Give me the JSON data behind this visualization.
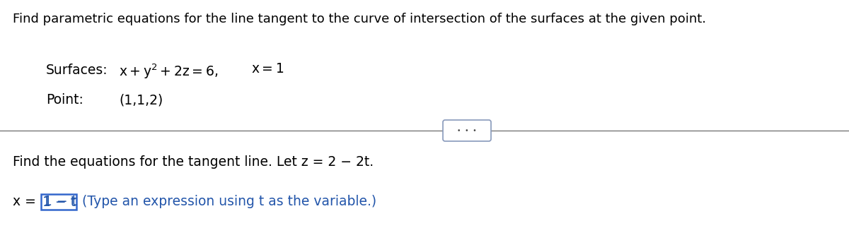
{
  "bg_color": "#ffffff",
  "title_text": "Find parametric equations for the line tangent to the curve of intersection of the surfaces at the given point.",
  "text_color": "#000000",
  "answer_color": "#2255aa",
  "box_edge_color": "#3366cc",
  "divider_color": "#777777",
  "font_family": "DejaVu Sans",
  "title_fontsize": 13.0,
  "body_fontsize": 13.5,
  "find_text": "Find the equations for the tangent line. Let z = 2 − 2t.",
  "x_eq_label": "x = ",
  "box_text": "1 − t",
  "type_text": "(Type an expression using t as the variable.)",
  "surfaces_label": "Surfaces:",
  "surfaces_eq": "$x+y^2+2z=6,$",
  "surfaces_eq2": "$x=1$",
  "point_label": "Point:",
  "point_val": "(1,1,2)"
}
